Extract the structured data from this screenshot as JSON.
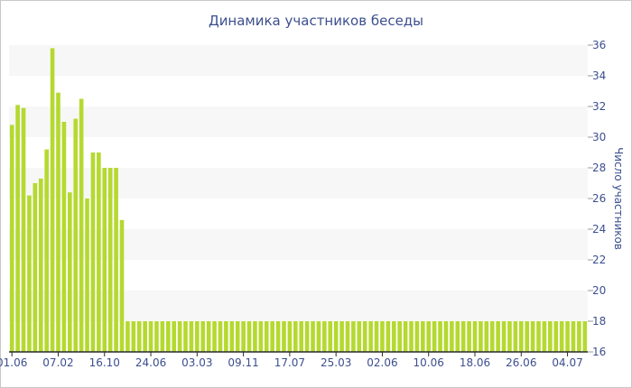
{
  "chart_data": {
    "type": "bar",
    "title": "Динамика участников беседы",
    "xlabel": "",
    "ylabel": "Число участников",
    "ylim": [
      16,
      36
    ],
    "y_ticks": [
      16,
      18,
      20,
      22,
      24,
      26,
      28,
      30,
      32,
      34,
      36
    ],
    "x_tick_labels": [
      "01.06",
      "07.02",
      "16.10",
      "24.06",
      "03.03",
      "09.11",
      "17.07",
      "25.03",
      "02.06",
      "10.06",
      "18.06",
      "26.06",
      "04.07"
    ],
    "y_axis_position": "right",
    "grid": "horizontal bands",
    "bar_color": "#b5d930",
    "band_color": "#f7f7f7",
    "text_color": "#3c4f8f",
    "values": [
      30.8,
      32.1,
      31.9,
      26.2,
      27.0,
      27.3,
      29.2,
      35.8,
      32.9,
      31.0,
      26.4,
      31.2,
      32.5,
      26.0,
      29.0,
      29.0,
      28.0,
      28.0,
      28.0,
      24.6,
      18,
      18,
      18,
      18,
      18,
      18,
      18,
      18,
      18,
      18,
      18,
      18,
      18,
      18,
      18,
      18,
      18,
      18,
      18,
      18,
      18,
      18,
      18,
      18,
      18,
      18,
      18,
      18,
      18,
      18,
      18,
      18,
      18,
      18,
      18,
      18,
      18,
      18,
      18,
      18,
      18,
      18,
      18,
      18,
      18,
      18,
      18,
      18,
      18,
      18,
      18,
      18,
      18,
      18,
      18,
      18,
      18,
      18,
      18,
      18,
      18,
      18,
      18,
      18,
      18,
      18,
      18,
      18,
      18,
      18,
      18,
      18,
      18,
      18,
      18,
      18,
      18,
      18,
      18,
      18
    ]
  }
}
